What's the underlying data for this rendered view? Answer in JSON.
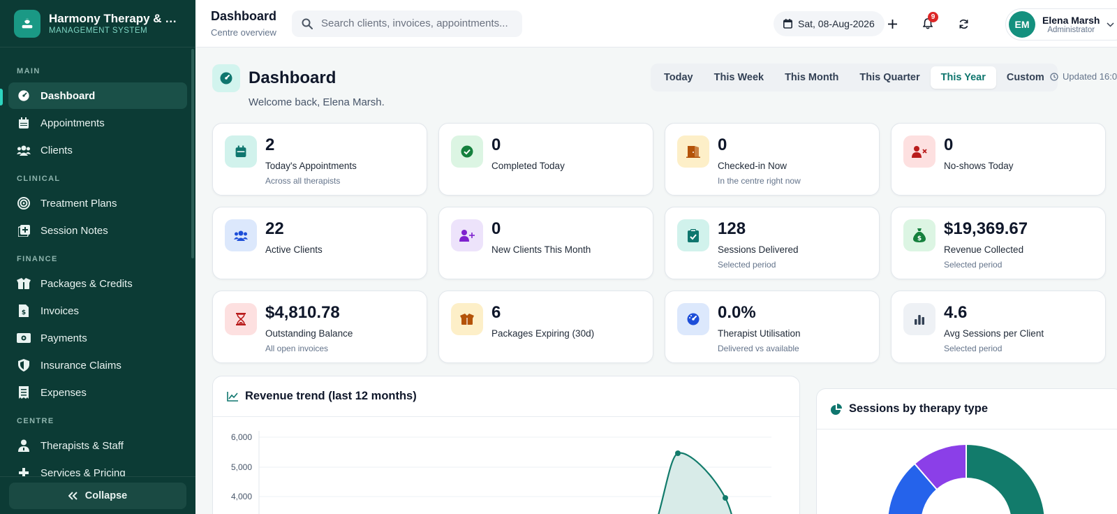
{
  "brand": {
    "title": "Harmony Therapy & Re...",
    "subtitle": "MANAGEMENT SYSTEM"
  },
  "sidebar": {
    "sections": [
      {
        "label": "MAIN",
        "items": [
          {
            "label": "Dashboard",
            "icon": "gauge-icon",
            "active": true
          },
          {
            "label": "Appointments",
            "icon": "calendar-icon"
          },
          {
            "label": "Clients",
            "icon": "users-icon"
          }
        ]
      },
      {
        "label": "CLINICAL",
        "items": [
          {
            "label": "Treatment Plans",
            "icon": "target-icon"
          },
          {
            "label": "Session Notes",
            "icon": "notes-plus-icon"
          }
        ]
      },
      {
        "label": "FINANCE",
        "items": [
          {
            "label": "Packages & Credits",
            "icon": "box-icon"
          },
          {
            "label": "Invoices",
            "icon": "invoice-icon"
          },
          {
            "label": "Payments",
            "icon": "money-icon"
          },
          {
            "label": "Insurance Claims",
            "icon": "shield-icon"
          },
          {
            "label": "Expenses",
            "icon": "receipt-icon"
          }
        ]
      },
      {
        "label": "CENTRE",
        "items": [
          {
            "label": "Therapists & Staff",
            "icon": "staff-icon"
          },
          {
            "label": "Services & Pricing",
            "icon": "plus-icon"
          }
        ]
      }
    ],
    "collapse_label": "Collapse"
  },
  "topbar": {
    "title": "Dashboard",
    "subtitle": "Centre overview",
    "search_placeholder": "Search clients, invoices, appointments...",
    "date": "Sat, 08-Aug-2026",
    "notification_count": "9",
    "user": {
      "initials": "EM",
      "name": "Elena Marsh",
      "role": "Administrator"
    }
  },
  "page": {
    "title": "Dashboard",
    "welcome": "Welcome back, Elena Marsh.",
    "periods": [
      "Today",
      "This Week",
      "This Month",
      "This Quarter",
      "This Year",
      "Custom"
    ],
    "selected_period": "This Year",
    "updated": "Updated 16:0"
  },
  "stats": [
    {
      "value": "2",
      "label": "Today's Appointments",
      "sub": "Across all therapists",
      "icon": "calendar-icon",
      "color": "#0f766e",
      "bg": "#d1f2ec"
    },
    {
      "value": "0",
      "label": "Completed Today",
      "sub": "",
      "icon": "check-circle-icon",
      "color": "#15803d",
      "bg": "#dcf5e3"
    },
    {
      "value": "0",
      "label": "Checked-in Now",
      "sub": "In the centre right now",
      "icon": "door-icon",
      "color": "#b45309",
      "bg": "#fdefc8"
    },
    {
      "value": "0",
      "label": "No-shows Today",
      "sub": "",
      "icon": "user-x-icon",
      "color": "#b91c1c",
      "bg": "#fde0e0"
    },
    {
      "value": "22",
      "label": "Active Clients",
      "sub": "",
      "icon": "users-icon",
      "color": "#1d4ed8",
      "bg": "#dce8fc"
    },
    {
      "value": "0",
      "label": "New Clients This Month",
      "sub": "",
      "icon": "user-plus-icon",
      "color": "#7e22ce",
      "bg": "#ede3fb"
    },
    {
      "value": "128",
      "label": "Sessions Delivered",
      "sub": "Selected period",
      "icon": "clipboard-check-icon",
      "color": "#0f766e",
      "bg": "#d1f2ec"
    },
    {
      "value": "$19,369.67",
      "label": "Revenue Collected",
      "sub": "Selected period",
      "icon": "money-bag-icon",
      "color": "#15803d",
      "bg": "#dcf5e3"
    },
    {
      "value": "$4,810.78",
      "label": "Outstanding Balance",
      "sub": "All open invoices",
      "icon": "hourglass-icon",
      "color": "#b91c1c",
      "bg": "#fde0e0"
    },
    {
      "value": "6",
      "label": "Packages Expiring (30d)",
      "sub": "",
      "icon": "box-icon",
      "color": "#b45309",
      "bg": "#fdefc8"
    },
    {
      "value": "0.0%",
      "label": "Therapist Utilisation",
      "sub": "Delivered vs available",
      "icon": "gauge-icon",
      "color": "#1d4ed8",
      "bg": "#dce8fc"
    },
    {
      "value": "4.6",
      "label": "Avg Sessions per Client",
      "sub": "Selected period",
      "icon": "bar-chart-icon",
      "color": "#334155",
      "bg": "#eef1f5"
    }
  ],
  "revenue_panel": {
    "title": "Revenue trend (last 12 months)",
    "y_ticks": [
      "6,000",
      "5,000",
      "4,000"
    ]
  },
  "sessions_panel": {
    "title": "Sessions by therapy type"
  },
  "chart_data": [
    {
      "type": "area",
      "title": "Revenue trend (last 12 months)",
      "ylim": [
        3600,
        6000
      ],
      "series": [
        {
          "values": [
            5450,
            4000
          ]
        }
      ]
    },
    {
      "type": "pie",
      "title": "Sessions by therapy type",
      "slices": [
        {
          "color": "#127b6b",
          "value": 34
        },
        {
          "color": "#8b3fe8",
          "value": 12
        },
        {
          "color": "#2563eb",
          "value": 9
        }
      ]
    }
  ]
}
